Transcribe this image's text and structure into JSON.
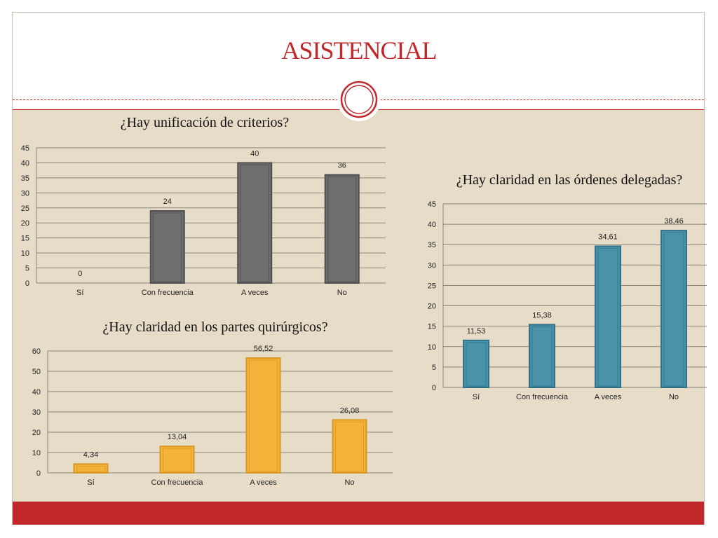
{
  "slide": {
    "title": "ASISTENCIAL"
  },
  "colors": {
    "accent": "#c0282c",
    "background": "#e6dcc8",
    "chart1_bar": "#6e6e6e",
    "chart2_bar": "#f4b43c",
    "chart3_bar": "#4a92a8"
  },
  "chart_data": [
    {
      "type": "bar",
      "title": "¿Hay unificación de criterios?",
      "categories": [
        "Sí",
        "Con frecuencia",
        "A veces",
        "No"
      ],
      "values": [
        0,
        24,
        40,
        36
      ],
      "value_labels": [
        "0",
        "24",
        "40",
        "36"
      ],
      "y_ticks": [
        "0",
        "5",
        "10",
        "15",
        "20",
        "25",
        "30",
        "35",
        "40",
        "45"
      ],
      "ylim": [
        0,
        45
      ],
      "grid": true,
      "legend": "none"
    },
    {
      "type": "bar",
      "title": "¿Hay claridad en los partes quirúrgicos?",
      "categories": [
        "Sí",
        "Con frecuencia",
        "A veces",
        "No"
      ],
      "values": [
        4.34,
        13.04,
        56.52,
        26.08
      ],
      "value_labels": [
        "4,34",
        "13,04",
        "56,52",
        "26,08"
      ],
      "y_ticks": [
        "0",
        "10",
        "20",
        "30",
        "40",
        "50",
        "60"
      ],
      "ylim": [
        0,
        60
      ],
      "grid": true,
      "legend": "none"
    },
    {
      "type": "bar",
      "title": "¿Hay claridad en las órdenes delegadas?",
      "categories": [
        "Sí",
        "Con frecuencia",
        "A veces",
        "No"
      ],
      "values": [
        11.53,
        15.38,
        34.61,
        38.46
      ],
      "value_labels": [
        "11,53",
        "15,38",
        "34,61",
        "38,46"
      ],
      "y_ticks": [
        "0",
        "5",
        "10",
        "15",
        "20",
        "25",
        "30",
        "35",
        "40",
        "45"
      ],
      "ylim": [
        0,
        45
      ],
      "grid": true,
      "legend": "none"
    }
  ]
}
